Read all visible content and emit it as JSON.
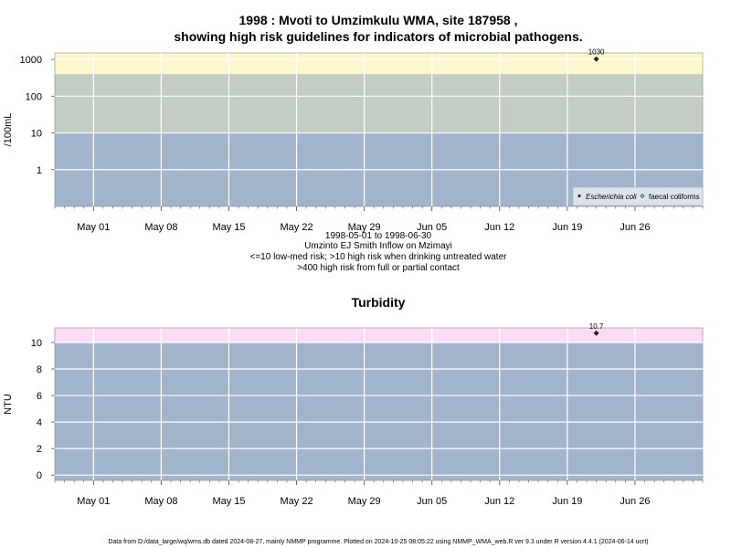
{
  "header": {
    "title_line1": "1998 : Mvoti to Umzimkulu WMA, site 187958 ,",
    "title_line2": "showing high risk guidelines for indicators of microbial pathogens."
  },
  "info": {
    "line1": "1998-05-01 to 1998-06-30",
    "line2": "Umzinto EJ Smith Inflow on Mzimayi",
    "line3": "<=10 low-med risk; >10 high risk when drinking untreated water",
    "line4": ">400 high risk from full or partial contact"
  },
  "footer": {
    "text": "Data from D:/data_large/wq/wms.db dated 2024-08-27, mainly NMMP programme. Plotted on 2024-10-25 08:05:22 using NMMP_WMA_web.R ver 9.3 under R version 4.4.1 (2024-06-14 ucrt)"
  },
  "chart_data": [
    {
      "type": "scatter",
      "title": "",
      "ylabel": "/100mL",
      "y_scale": "log",
      "ylim": [
        0.1,
        1500
      ],
      "yticks": [
        1,
        10,
        100,
        1000
      ],
      "ytick_labels": [
        "1",
        "10",
        "100",
        "1000"
      ],
      "xlim": [
        "1998-04-27",
        "1998-07-03"
      ],
      "xticks": [
        "1998-05-01",
        "1998-05-08",
        "1998-05-15",
        "1998-05-22",
        "1998-05-29",
        "1998-06-05",
        "1998-06-12",
        "1998-06-19",
        "1998-06-26"
      ],
      "xtick_labels": [
        "May 01",
        "May 08",
        "May 15",
        "May 22",
        "May 29",
        "Jun 05",
        "Jun 12",
        "Jun 19",
        "Jun 26"
      ],
      "grid": true,
      "bands": [
        {
          "from": 0.1,
          "to": 10,
          "color": "#a2b3cc"
        },
        {
          "from": 10,
          "to": 400,
          "color": "#c4cdc3"
        },
        {
          "from": 400,
          "to": 1500,
          "color": "#fdf7cf"
        }
      ],
      "series": [
        {
          "name": "Escherichia coli",
          "marker": "filled-diamond",
          "points": [
            {
              "x": "1998-06-22",
              "y": 1030,
              "label": "1030"
            }
          ]
        },
        {
          "name": "faecal coliforms",
          "marker": "open-diamond",
          "points": []
        }
      ],
      "legend": {
        "position": "bottom-right",
        "entries": [
          "Escherichia coli",
          "faecal coliforms"
        ]
      }
    },
    {
      "type": "scatter",
      "title": "Turbidity",
      "ylabel": "NTU",
      "y_scale": "linear",
      "ylim": [
        -0.4,
        11.1
      ],
      "yticks": [
        0,
        2,
        4,
        6,
        8,
        10
      ],
      "ytick_labels": [
        "0",
        "2",
        "4",
        "6",
        "8",
        "10"
      ],
      "xlim": [
        "1998-04-27",
        "1998-07-03"
      ],
      "xticks": [
        "1998-05-01",
        "1998-05-08",
        "1998-05-15",
        "1998-05-22",
        "1998-05-29",
        "1998-06-05",
        "1998-06-12",
        "1998-06-19",
        "1998-06-26"
      ],
      "xtick_labels": [
        "May 01",
        "May 08",
        "May 15",
        "May 22",
        "May 29",
        "Jun 05",
        "Jun 12",
        "Jun 19",
        "Jun 26"
      ],
      "grid": true,
      "bands": [
        {
          "from": -0.4,
          "to": 10,
          "color": "#a2b3cc"
        },
        {
          "from": 10,
          "to": 11.1,
          "color": "#fcdcf5"
        }
      ],
      "series": [
        {
          "name": "",
          "marker": "filled-diamond",
          "points": [
            {
              "x": "1998-06-22",
              "y": 10.7,
              "label": "10.7"
            }
          ]
        }
      ]
    }
  ]
}
